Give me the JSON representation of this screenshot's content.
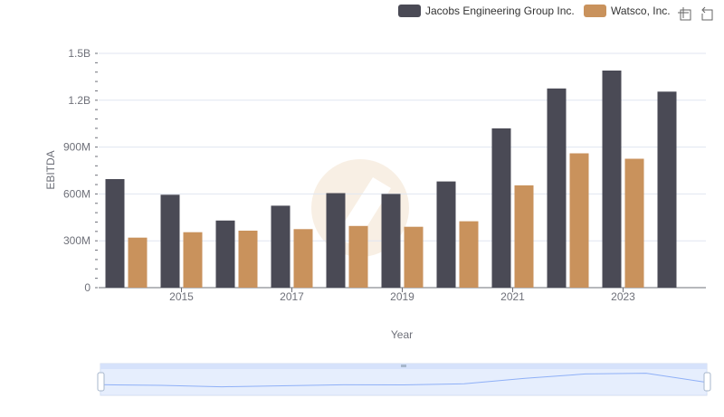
{
  "chart_data": {
    "type": "bar",
    "title": "",
    "xlabel": "Year",
    "ylabel": "EBITDA",
    "ylim": [
      0,
      1500000000
    ],
    "y_ticks": [
      {
        "value": 0,
        "label": "0"
      },
      {
        "value": 300000000,
        "label": "300M"
      },
      {
        "value": 600000000,
        "label": "600M"
      },
      {
        "value": 900000000,
        "label": "900M"
      },
      {
        "value": 1200000000,
        "label": "1.2B"
      },
      {
        "value": 1500000000,
        "label": "1.5B"
      }
    ],
    "categories": [
      "2014",
      "2015",
      "2016",
      "2017",
      "2018",
      "2019",
      "2020",
      "2021",
      "2022",
      "2023",
      "2024"
    ],
    "x_tick_labels": [
      "2015",
      "2017",
      "2019",
      "2021",
      "2023"
    ],
    "legend_position": "top-right",
    "grid": true,
    "series": [
      {
        "name": "Jacobs Engineering Group Inc.",
        "color": "#4a4a55",
        "values": [
          695000000,
          595000000,
          430000000,
          525000000,
          605000000,
          600000000,
          680000000,
          1020000000,
          1275000000,
          1390000000,
          1255000000
        ]
      },
      {
        "name": "Watsco, Inc.",
        "color": "#c9925c",
        "values": [
          320000000,
          355000000,
          365000000,
          375000000,
          395000000,
          390000000,
          425000000,
          655000000,
          860000000,
          825000000,
          null
        ]
      }
    ]
  },
  "toolbox": {
    "zoom_icon": "zoom-icon",
    "restore_icon": "restore-icon"
  },
  "data_zoom": {
    "handle_color": "#a7b7cc",
    "fill_color": "#d6e2fb"
  },
  "watermark_color": "#f3e3cf"
}
